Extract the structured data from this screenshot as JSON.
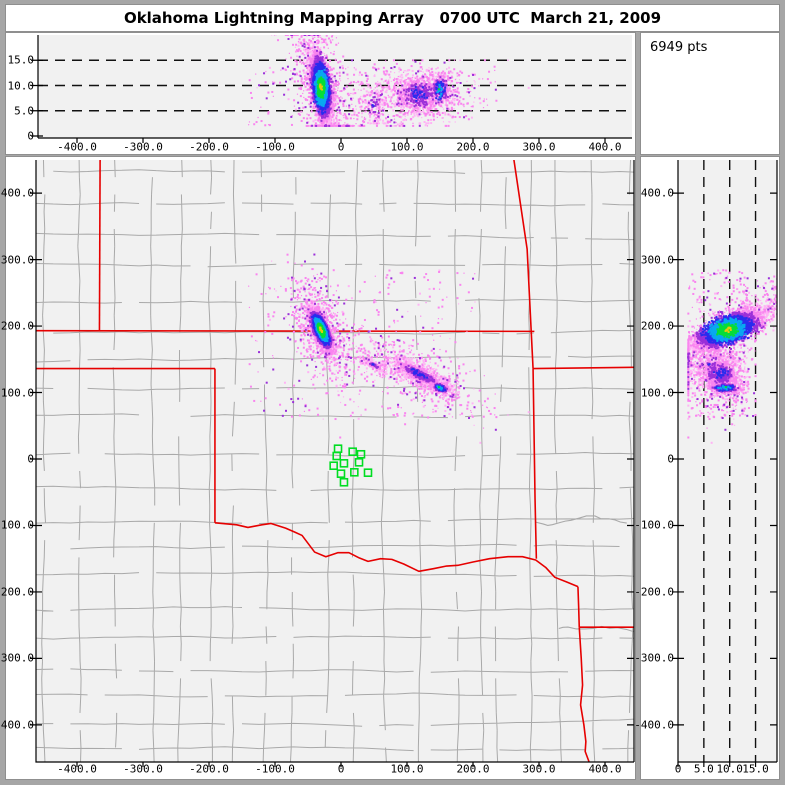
{
  "title": "Oklahoma Lightning Mapping Array   0700 UTC  March 21, 2009",
  "points_box": {
    "label": "6949 pts"
  },
  "colors": {
    "frame": "#a6a6a6",
    "panel_bg": "#ffffff",
    "plot_bg": "#f1f1f1",
    "axis": "#000000",
    "dashed_line": "#111111",
    "county_line": "#a9a9a9",
    "state_line": "#e60000",
    "station": "#00dd22",
    "density_ramp": [
      "#ffb3f5",
      "#f985ef",
      "#9b30d9",
      "#2a2cee",
      "#09a8f0",
      "#07dd37",
      "#e9c80a"
    ]
  },
  "chart_data": {
    "type": "scatter",
    "title": "Oklahoma Lightning Mapping Array",
    "timestamp": "0700 UTC  March 21, 2009",
    "total_points": 6949,
    "panels": [
      "east-west distance vs altitude",
      "plan view map",
      "altitude vs north-south distance"
    ],
    "x_axis_km": {
      "min": -462,
      "max": 444,
      "grid": false,
      "ticks": [
        -400,
        -300,
        -200,
        -100,
        0,
        100,
        200,
        300,
        400
      ],
      "tick_labels": [
        "-400.0",
        "-300.0",
        "-200.0",
        "-100.0",
        "0",
        "100.0",
        "200.0",
        "300.0",
        "400.0"
      ]
    },
    "y_axis_km": {
      "min": -456,
      "max": 450,
      "grid": false,
      "ticks": [
        400,
        300,
        200,
        100,
        0,
        -100,
        -200,
        -300,
        -400
      ],
      "tick_labels": [
        "400.0",
        "300.0",
        "200.0",
        "100.0",
        "0",
        "-100.0",
        "-200.0",
        "-300.0",
        "-400.0"
      ]
    },
    "alt_axis_km": {
      "min": 0,
      "max": 20,
      "ticks": [
        0,
        5,
        10,
        15
      ],
      "tick_labels": [
        "0",
        "5.0",
        "10.0",
        "15.0"
      ],
      "dashed_levels": [
        5,
        10,
        15
      ]
    },
    "clusters": [
      {
        "name": "main-storm",
        "n": 3900,
        "cx": -30,
        "cy": 194,
        "angle_deg": 114,
        "sigma_major": 16,
        "sigma_minor": 5.5,
        "alt_mean": 9.6,
        "alt_sigma": 2.2,
        "alt_tilt": 0.15,
        "alt_min": 2.2,
        "alt_max": 18.5,
        "peak": 6.2,
        "halo_n": 700,
        "halo_scale": 2.6
      },
      {
        "name": "east-storm",
        "n": 950,
        "cx": 118,
        "cy": 128,
        "angle_deg": -27,
        "sigma_major": 26,
        "sigma_minor": 7,
        "alt_mean": 8.3,
        "alt_sigma": 2.0,
        "alt_tilt": 0.0,
        "alt_min": 2.5,
        "alt_max": 13.5,
        "peak": 3.8,
        "halo_n": 420,
        "halo_scale": 2.4
      },
      {
        "name": "east-storm-core",
        "n": 230,
        "cx": 150,
        "cy": 107,
        "angle_deg": -20,
        "sigma_major": 7,
        "sigma_minor": 3.5,
        "alt_mean": 9.2,
        "alt_sigma": 1.3,
        "alt_tilt": 0.0,
        "alt_min": 3.0,
        "alt_max": 12.5,
        "peak": 5.2,
        "halo_n": 80,
        "halo_scale": 2.5
      },
      {
        "name": "west-streak",
        "n": 140,
        "cx": 50,
        "cy": 141,
        "angle_deg": -25,
        "sigma_major": 10,
        "sigma_minor": 3,
        "alt_mean": 6.0,
        "alt_sigma": 2.0,
        "alt_tilt": 0.0,
        "alt_min": 2.5,
        "alt_max": 12.0,
        "peak": 3.4,
        "halo_n": 60,
        "halo_scale": 2.5
      }
    ],
    "field_noise": {
      "n": 260,
      "x_range": [
        -140,
        205
      ],
      "y_range": [
        60,
        285
      ],
      "alt_range": [
        2,
        13.5
      ]
    },
    "stations_km": [
      [
        -4.5,
        15.5
      ],
      [
        17.7,
        11.0
      ],
      [
        30.3,
        7.1
      ],
      [
        -6.5,
        4.5
      ],
      [
        4.5,
        -6.5
      ],
      [
        -11.1,
        -10.1
      ],
      [
        27.3,
        -5.0
      ],
      [
        20.2,
        -20.0
      ],
      [
        40.9,
        -20.6
      ],
      [
        0.0,
        -22.1
      ],
      [
        4.5,
        -35.0
      ]
    ],
    "state_borders_km": {
      "co_ks_west_102w": [
        [
          -365,
          450
        ],
        [
          -366,
          192
        ]
      ],
      "ks_ok_37n": [
        [
          -462,
          193
        ],
        [
          293,
          192
        ]
      ],
      "ok_panhandle_36_5n": [
        [
          -462,
          136
        ],
        [
          -191,
          136
        ]
      ],
      "tx_ok_100w": [
        [
          -191,
          136
        ],
        [
          -191,
          -96
        ]
      ],
      "red_river": [
        [
          -191,
          -96
        ],
        [
          -158,
          -99
        ],
        [
          -141,
          -103
        ],
        [
          -120,
          -99
        ],
        [
          -106,
          -97
        ],
        [
          -84,
          -104
        ],
        [
          -70,
          -110
        ],
        [
          -59,
          -115
        ],
        [
          -40,
          -140
        ],
        [
          -23,
          -147
        ],
        [
          -5,
          -141
        ],
        [
          12,
          -141
        ],
        [
          28,
          -149
        ],
        [
          41,
          -154
        ],
        [
          60,
          -150
        ],
        [
          77,
          -151
        ],
        [
          95,
          -158
        ],
        [
          118,
          -169
        ],
        [
          140,
          -165
        ],
        [
          160,
          -161
        ],
        [
          177,
          -160
        ],
        [
          200,
          -155
        ],
        [
          225,
          -150
        ],
        [
          253,
          -147
        ],
        [
          275,
          -147
        ],
        [
          295,
          -152
        ],
        [
          310,
          -163
        ],
        [
          324,
          -178
        ],
        [
          342,
          -185
        ],
        [
          359,
          -192
        ]
      ],
      "ks_mo": [
        [
          262,
          450
        ],
        [
          282,
          316
        ],
        [
          291,
          136
        ]
      ],
      "mo_ar_36_5n": [
        [
          291,
          136
        ],
        [
          444,
          138
        ]
      ],
      "ok_ar": [
        [
          291,
          136
        ],
        [
          294,
          -60
        ],
        [
          296,
          -150
        ]
      ],
      "tx_ar": [
        [
          359,
          -192
        ],
        [
          360,
          -220
        ],
        [
          361,
          -253
        ]
      ],
      "ar_la_33n": [
        [
          361,
          -253
        ],
        [
          444,
          -253
        ]
      ],
      "tx_la": [
        [
          361,
          -253
        ],
        [
          364,
          -300
        ],
        [
          366,
          -340
        ],
        [
          363,
          -370
        ],
        [
          368,
          -400
        ],
        [
          371,
          -425
        ],
        [
          370,
          -440
        ],
        [
          376,
          -456
        ]
      ]
    },
    "county_grid": {
      "seed": 1234,
      "cell_min_km": 34,
      "cell_max_km": 60,
      "skip_fraction": 0.13
    }
  }
}
